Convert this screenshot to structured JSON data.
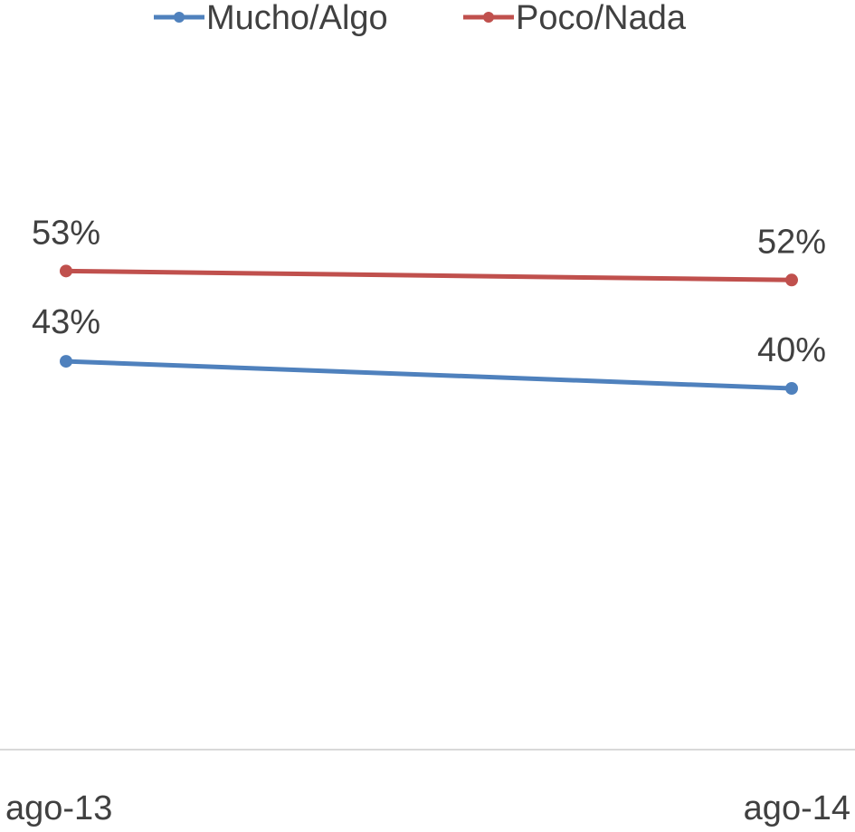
{
  "chart_data": {
    "type": "line",
    "categories": [
      "ago-13",
      "ago-14"
    ],
    "series": [
      {
        "name": "Mucho/Algo",
        "values": [
          43,
          40
        ],
        "labels": [
          "43%",
          "40%"
        ],
        "color": "#4f81bd"
      },
      {
        "name": "Poco/Nada",
        "values": [
          53,
          52
        ],
        "labels": [
          "53%",
          "52%"
        ],
        "color": "#c0504d"
      }
    ],
    "title": "",
    "xlabel": "",
    "ylabel": "",
    "ylim": [
      0,
      80
    ],
    "grid": false,
    "legend_position": "top-center",
    "axis_color": "#d9d9d9"
  }
}
